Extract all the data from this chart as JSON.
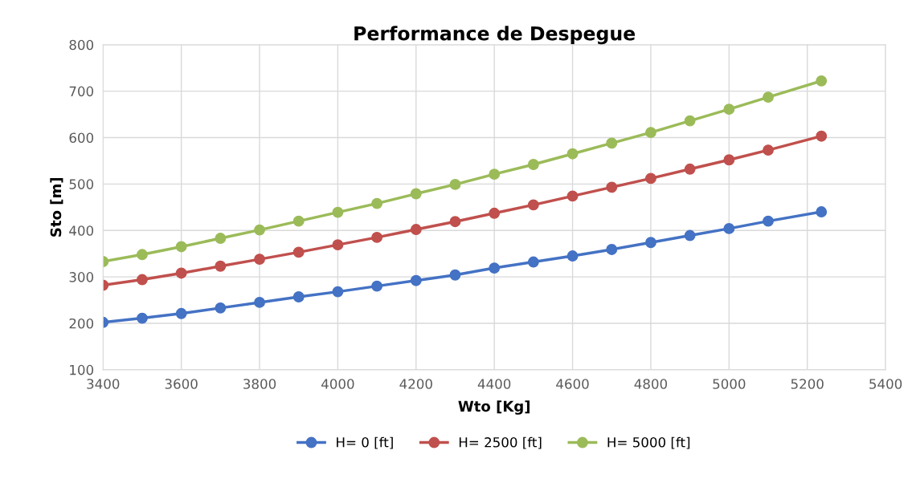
{
  "chart_data": {
    "type": "line",
    "title": "Performance de Despegue",
    "xlabel": "Wto [Kg]",
    "ylabel": "Sto [m]",
    "x": [
      3400,
      3500,
      3600,
      3700,
      3800,
      3900,
      4000,
      4100,
      4200,
      4300,
      4400,
      4500,
      4600,
      4700,
      4800,
      4900,
      5000,
      5100,
      5236
    ],
    "series": [
      {
        "name": "H= 0 [ft]",
        "color": "#4472c4",
        "values": [
          202,
          211,
          221,
          233,
          245,
          257,
          268,
          280,
          292,
          304,
          319,
          332,
          345,
          359,
          374,
          389,
          404,
          420,
          440
        ]
      },
      {
        "name": "H= 2500 [ft]",
        "color": "#c0504d",
        "values": [
          282,
          294,
          308,
          323,
          338,
          353,
          369,
          385,
          402,
          419,
          437,
          455,
          474,
          493,
          512,
          532,
          552,
          573,
          603
        ]
      },
      {
        "name": "H= 5000 [ft]",
        "color": "#9bbb59",
        "values": [
          333,
          348,
          365,
          383,
          401,
          420,
          439,
          458,
          479,
          499,
          521,
          542,
          565,
          588,
          611,
          636,
          661,
          687,
          722
        ]
      }
    ],
    "xlim": [
      3400,
      5400
    ],
    "xticks": [
      3400,
      3600,
      3800,
      4000,
      4200,
      4400,
      4600,
      4800,
      5000,
      5200,
      5400
    ],
    "ylim": [
      100,
      800
    ],
    "yticks": [
      100,
      200,
      300,
      400,
      500,
      600,
      700,
      800
    ],
    "grid": true,
    "legend": "bottom",
    "marker": "circle",
    "line_style": "solid"
  }
}
